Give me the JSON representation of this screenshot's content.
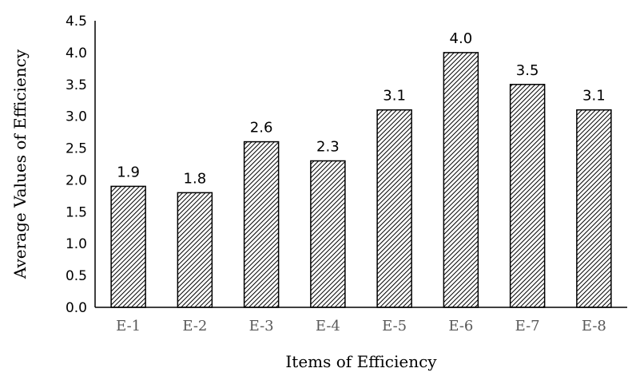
{
  "chart_data": {
    "type": "bar",
    "categories": [
      "E-1",
      "E-2",
      "E-3",
      "E-4",
      "E-5",
      "E-6",
      "E-7",
      "E-8"
    ],
    "values": [
      1.9,
      1.8,
      2.6,
      2.3,
      3.1,
      4.0,
      3.5,
      3.1
    ],
    "data_labels": [
      "1.9",
      "1.8",
      "2.6",
      "2.3",
      "3.1",
      "4.0",
      "3.5",
      "3.1"
    ],
    "title": "",
    "xlabel": "Items of Efficiency",
    "ylabel": "Average Values of Efficiency",
    "ylim": [
      0,
      4.5
    ],
    "yticks": [
      "0.0",
      "0.5",
      "1.0",
      "1.5",
      "2.0",
      "2.5",
      "3.0",
      "3.5",
      "4.0",
      "4.5"
    ],
    "grid": false,
    "legend": "none",
    "bar_fill": "diagonal hatch",
    "bar_stroke_color": "#000000",
    "hatch_color": "#000000",
    "category_label_color": "#595959"
  }
}
